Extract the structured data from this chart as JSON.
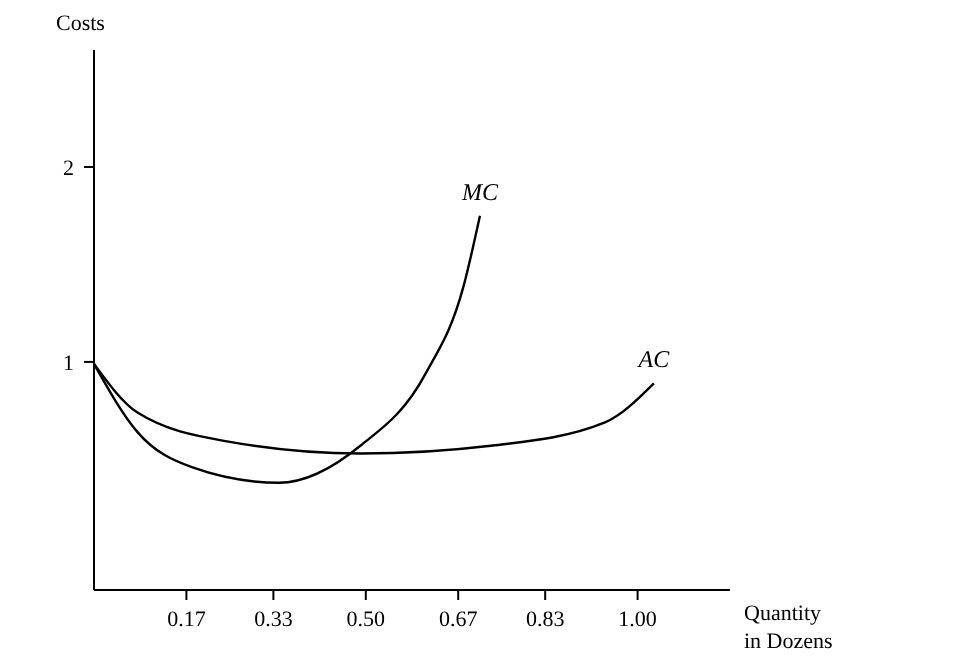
{
  "chart_data": {
    "type": "line",
    "ylabel": "Costs",
    "xlabel": "Quantity in Dozens",
    "xlim": [
      0,
      1.17
    ],
    "ylim": [
      -0.17,
      2.6
    ],
    "xticks": [
      {
        "value": 0.17,
        "label": "0.17"
      },
      {
        "value": 0.33,
        "label": "0.33"
      },
      {
        "value": 0.5,
        "label": "0.50"
      },
      {
        "value": 0.67,
        "label": "0.67"
      },
      {
        "value": 0.83,
        "label": "0.83"
      },
      {
        "value": 1,
        "label": "1.00"
      }
    ],
    "yticks": [
      1,
      2
    ],
    "grid": false,
    "marker": "none",
    "line_style": "solid",
    "series": [
      {
        "name": "MC",
        "color": "#000000",
        "x": [
          0,
          0.08,
          0.18,
          0.34,
          0.49,
          0.61,
          0.68,
          0.71
        ],
        "values": [
          0.99,
          0.64,
          0.46,
          0.38,
          0.57,
          0.94,
          1.39,
          1.75
        ]
      },
      {
        "name": "AC",
        "color": "#000000",
        "x": [
          0,
          0.08,
          0.25,
          0.49,
          0.73,
          0.94,
          1.03
        ],
        "values": [
          0.99,
          0.74,
          0.59,
          0.53,
          0.57,
          0.69,
          0.89
        ]
      }
    ]
  }
}
